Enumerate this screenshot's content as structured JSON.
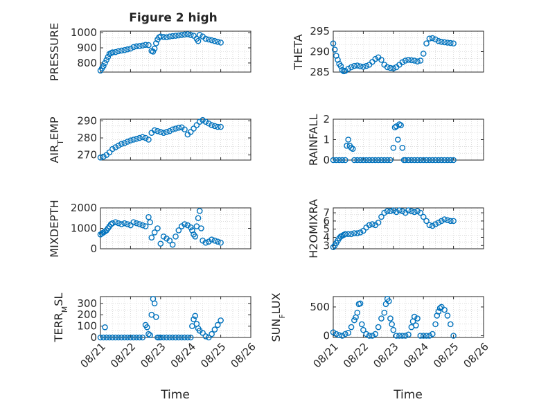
{
  "figure": {
    "title": "Figure 2 high",
    "series_color": "#0072BD"
  },
  "chart_data": [
    {
      "type": "scatter",
      "ylabel": "PRESSURE",
      "ylim": [
        740,
        1010
      ],
      "yticks": [
        800,
        900,
        1000
      ],
      "xlim": [
        0,
        5
      ],
      "x": [
        0.0,
        0.05,
        0.1,
        0.15,
        0.2,
        0.25,
        0.3,
        0.35,
        0.4,
        0.5,
        0.6,
        0.7,
        0.8,
        0.9,
        1.0,
        1.1,
        1.2,
        1.3,
        1.4,
        1.5,
        1.6,
        1.7,
        1.75,
        1.8,
        1.85,
        1.9,
        1.95,
        2.0,
        2.1,
        2.2,
        2.3,
        2.4,
        2.5,
        2.6,
        2.7,
        2.8,
        2.9,
        3.0,
        3.1,
        3.2,
        3.25,
        3.3,
        3.4,
        3.5,
        3.6,
        3.7,
        3.8,
        3.9,
        4.0
      ],
      "y": [
        750,
        765,
        780,
        800,
        820,
        840,
        860,
        865,
        870,
        872,
        878,
        882,
        885,
        890,
        895,
        905,
        910,
        912,
        915,
        920,
        918,
        880,
        875,
        895,
        930,
        955,
        970,
        975,
        972,
        970,
        975,
        978,
        980,
        982,
        985,
        988,
        990,
        985,
        980,
        960,
        945,
        985,
        975,
        960,
        955,
        950,
        945,
        940,
        935
      ]
    },
    {
      "type": "scatter",
      "ylabel": "THETA",
      "ylim": [
        285,
        295
      ],
      "yticks": [
        285,
        290,
        295
      ],
      "xlim": [
        0,
        5
      ],
      "x": [
        0.0,
        0.05,
        0.1,
        0.15,
        0.2,
        0.25,
        0.3,
        0.35,
        0.4,
        0.5,
        0.6,
        0.7,
        0.8,
        0.9,
        1.0,
        1.1,
        1.2,
        1.3,
        1.4,
        1.5,
        1.6,
        1.7,
        1.8,
        1.9,
        2.0,
        2.1,
        2.2,
        2.3,
        2.4,
        2.5,
        2.6,
        2.7,
        2.8,
        2.9,
        3.0,
        3.1,
        3.2,
        3.3,
        3.4,
        3.5,
        3.6,
        3.7,
        3.8,
        3.9,
        4.0
      ],
      "y": [
        292,
        290.5,
        289,
        288,
        287,
        286.5,
        285.5,
        285.2,
        285.3,
        285.8,
        286.2,
        286.5,
        286.6,
        286.4,
        286.3,
        286.5,
        286.8,
        287.5,
        288.2,
        288.6,
        288.0,
        286.8,
        286.2,
        286.0,
        285.9,
        286.2,
        286.8,
        287.4,
        287.8,
        288.0,
        287.9,
        287.8,
        287.6,
        287.8,
        289.5,
        292.0,
        293.2,
        293.3,
        293.0,
        292.6,
        292.4,
        292.3,
        292.2,
        292.1,
        292.0
      ]
    },
    {
      "type": "scatter",
      "ylabel": "AIR_TEMP",
      "ylim": [
        267,
        291
      ],
      "yticks": [
        270,
        280,
        290
      ],
      "xlim": [
        0,
        5
      ],
      "x": [
        0.0,
        0.1,
        0.2,
        0.3,
        0.4,
        0.5,
        0.6,
        0.7,
        0.8,
        0.9,
        1.0,
        1.1,
        1.2,
        1.3,
        1.4,
        1.5,
        1.6,
        1.7,
        1.8,
        1.9,
        2.0,
        2.1,
        2.2,
        2.3,
        2.4,
        2.5,
        2.6,
        2.7,
        2.8,
        2.9,
        3.0,
        3.1,
        3.2,
        3.3,
        3.4,
        3.5,
        3.6,
        3.7,
        3.8,
        3.9,
        4.0
      ],
      "y": [
        268.5,
        269.0,
        270.0,
        271.5,
        273.5,
        274.5,
        275.5,
        276.5,
        277.0,
        277.8,
        278.5,
        279.0,
        279.5,
        280.0,
        280.5,
        280.0,
        279.0,
        283.0,
        284.5,
        284.0,
        283.5,
        283.0,
        283.5,
        284.0,
        285.0,
        285.5,
        286.0,
        286.2,
        285.0,
        282.0,
        283.5,
        285.5,
        287.5,
        289.5,
        290.5,
        289.5,
        288.5,
        287.5,
        287.0,
        286.5,
        286.5
      ]
    },
    {
      "type": "scatter",
      "ylabel": "RAINFALL",
      "ylim": [
        0,
        2
      ],
      "yticks": [
        0,
        1,
        2
      ],
      "xlim": [
        0,
        5
      ],
      "x": [
        0.0,
        0.1,
        0.2,
        0.3,
        0.4,
        0.45,
        0.5,
        0.55,
        0.6,
        0.65,
        0.7,
        0.8,
        0.9,
        1.0,
        1.1,
        1.2,
        1.3,
        1.4,
        1.5,
        1.6,
        1.7,
        1.8,
        1.9,
        2.0,
        2.05,
        2.1,
        2.15,
        2.2,
        2.25,
        2.3,
        2.35,
        2.4,
        2.5,
        2.6,
        2.7,
        2.8,
        2.9,
        3.0,
        3.1,
        3.2,
        3.3,
        3.4,
        3.5,
        3.6,
        3.7,
        3.8,
        3.9,
        4.0
      ],
      "y": [
        0,
        0,
        0,
        0,
        0,
        0.7,
        1.0,
        0.7,
        0.6,
        0.55,
        0,
        0,
        0,
        0,
        0,
        0,
        0,
        0,
        0,
        0,
        0,
        0,
        0,
        0.6,
        1.6,
        1.65,
        1.0,
        1.75,
        1.7,
        0.6,
        0,
        0,
        0,
        0,
        0,
        0,
        0,
        0,
        0,
        0,
        0,
        0,
        0,
        0,
        0,
        0,
        0,
        0
      ]
    },
    {
      "type": "scatter",
      "ylabel": "MIXDEPTH",
      "ylim": [
        0,
        2000
      ],
      "yticks": [
        0,
        1000,
        2000
      ],
      "xlim": [
        0,
        5
      ],
      "x": [
        0.0,
        0.05,
        0.1,
        0.15,
        0.2,
        0.25,
        0.3,
        0.35,
        0.4,
        0.5,
        0.6,
        0.7,
        0.8,
        0.9,
        1.0,
        1.1,
        1.2,
        1.3,
        1.4,
        1.5,
        1.6,
        1.65,
        1.7,
        1.8,
        1.9,
        2.0,
        2.1,
        2.2,
        2.3,
        2.4,
        2.5,
        2.6,
        2.7,
        2.8,
        2.9,
        3.0,
        3.05,
        3.1,
        3.15,
        3.2,
        3.25,
        3.3,
        3.35,
        3.4,
        3.5,
        3.6,
        3.7,
        3.8,
        3.9,
        4.0
      ],
      "y": [
        700,
        750,
        800,
        850,
        900,
        1000,
        1100,
        1200,
        1250,
        1300,
        1250,
        1200,
        1250,
        1200,
        1150,
        1300,
        1250,
        1200,
        1150,
        1100,
        1550,
        1300,
        550,
        800,
        1000,
        250,
        600,
        500,
        400,
        200,
        600,
        900,
        1100,
        1200,
        1150,
        1050,
        900,
        700,
        600,
        1100,
        1500,
        1850,
        1000,
        400,
        300,
        350,
        450,
        400,
        350,
        300
      ]
    },
    {
      "type": "scatter",
      "ylabel": "H2OMIXRA",
      "ylim": [
        2.6,
        7.6
      ],
      "yticks": [
        3,
        4,
        5,
        6,
        7
      ],
      "xlim": [
        0,
        5
      ],
      "x": [
        0.0,
        0.05,
        0.1,
        0.15,
        0.2,
        0.25,
        0.3,
        0.35,
        0.4,
        0.5,
        0.6,
        0.7,
        0.8,
        0.9,
        1.0,
        1.1,
        1.2,
        1.3,
        1.4,
        1.5,
        1.6,
        1.7,
        1.8,
        1.9,
        2.0,
        2.1,
        2.2,
        2.3,
        2.4,
        2.5,
        2.6,
        2.7,
        2.8,
        2.9,
        3.0,
        3.1,
        3.2,
        3.3,
        3.4,
        3.5,
        3.6,
        3.7,
        3.8,
        3.9,
        4.0
      ],
      "y": [
        2.8,
        3.0,
        3.3,
        3.6,
        3.9,
        4.1,
        4.2,
        4.3,
        4.4,
        4.4,
        4.4,
        4.5,
        4.5,
        4.6,
        4.8,
        5.2,
        5.5,
        5.6,
        5.5,
        5.8,
        6.5,
        7.0,
        7.2,
        7.2,
        7.3,
        7.1,
        7.3,
        7.2,
        7.0,
        7.3,
        7.2,
        7.1,
        7.2,
        7.0,
        6.5,
        6.0,
        5.5,
        5.4,
        5.6,
        5.8,
        6.0,
        6.2,
        6.1,
        6.0,
        6.0
      ]
    },
    {
      "type": "scatter",
      "ylabel": "TERR_MSL",
      "ylim": [
        0,
        360
      ],
      "yticks": [
        0,
        100,
        200,
        300
      ],
      "xlim": [
        0,
        5
      ],
      "x": [
        0.0,
        0.1,
        0.15,
        0.2,
        0.3,
        0.4,
        0.5,
        0.6,
        0.7,
        0.8,
        0.9,
        1.0,
        1.1,
        1.2,
        1.3,
        1.4,
        1.5,
        1.55,
        1.6,
        1.65,
        1.7,
        1.75,
        1.8,
        1.85,
        1.9,
        1.95,
        2.0,
        2.1,
        2.2,
        2.3,
        2.4,
        2.5,
        2.6,
        2.7,
        2.8,
        2.9,
        3.0,
        3.05,
        3.1,
        3.15,
        3.2,
        3.25,
        3.3,
        3.4,
        3.5,
        3.6,
        3.7,
        3.8,
        3.9,
        4.0
      ],
      "y": [
        0,
        0,
        90,
        0,
        0,
        0,
        0,
        0,
        0,
        0,
        0,
        0,
        0,
        0,
        0,
        0,
        110,
        90,
        30,
        20,
        200,
        340,
        300,
        180,
        0,
        0,
        0,
        0,
        0,
        0,
        0,
        0,
        0,
        0,
        0,
        0,
        0,
        100,
        160,
        190,
        120,
        80,
        60,
        40,
        10,
        0,
        30,
        70,
        110,
        150
      ]
    },
    {
      "type": "scatter",
      "ylabel": "SUN_FLUX",
      "ylim": [
        -30,
        680
      ],
      "yticks": [
        0,
        500
      ],
      "xlim": [
        0,
        5
      ],
      "x": [
        0.0,
        0.1,
        0.2,
        0.3,
        0.4,
        0.5,
        0.6,
        0.7,
        0.75,
        0.8,
        0.85,
        0.9,
        0.95,
        1.0,
        1.1,
        1.2,
        1.3,
        1.4,
        1.5,
        1.6,
        1.7,
        1.75,
        1.8,
        1.85,
        1.9,
        1.95,
        2.0,
        2.1,
        2.2,
        2.3,
        2.4,
        2.5,
        2.6,
        2.65,
        2.7,
        2.75,
        2.8,
        2.9,
        3.0,
        3.1,
        3.2,
        3.3,
        3.4,
        3.45,
        3.5,
        3.55,
        3.6,
        3.7,
        3.8,
        3.9,
        4.0
      ],
      "y": [
        60,
        30,
        10,
        0,
        30,
        50,
        150,
        270,
        320,
        400,
        550,
        560,
        200,
        100,
        30,
        0,
        0,
        30,
        150,
        300,
        400,
        550,
        640,
        600,
        300,
        200,
        100,
        0,
        0,
        0,
        0,
        20,
        150,
        250,
        330,
        180,
        300,
        0,
        0,
        0,
        0,
        30,
        200,
        350,
        420,
        480,
        500,
        450,
        350,
        200,
        0
      ]
    }
  ],
  "xticks": [
    "08/21",
    "08/22",
    "08/23",
    "08/24",
    "08/25",
    "08/26"
  ],
  "xlabels": [
    "Time",
    "Time"
  ]
}
